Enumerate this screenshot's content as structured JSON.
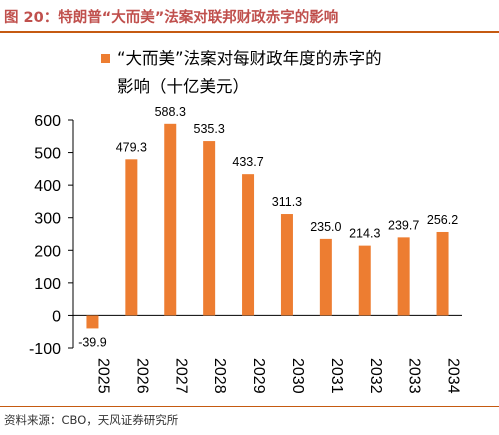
{
  "figure": {
    "title": "图 20：特朗普“大而美”法案对联邦财政赤字的影响",
    "source": "资料来源：CBO，天风证券研究所"
  },
  "chart_data": {
    "type": "bar",
    "categories": [
      "2025",
      "2026",
      "2027",
      "2028",
      "2029",
      "2030",
      "2031",
      "2032",
      "2033",
      "2034"
    ],
    "series": [
      {
        "name": "“大而美”法案对每财政年度的赤字的影响（十亿美元）",
        "values": [
          -39.9,
          479.3,
          588.3,
          535.3,
          433.7,
          311.3,
          235.0,
          214.3,
          239.7,
          256.2
        ],
        "value_labels": [
          "-39.9",
          "479.3",
          "588.3",
          "535.3",
          "433.7",
          "311.3",
          "235.0",
          "214.3",
          "239.7",
          "256.2"
        ],
        "color": "#ed7d31"
      }
    ],
    "legend_lines": [
      "“大而美”法案对每财政年度的赤字的",
      "影响（十亿美元）"
    ],
    "yticks": [
      -100,
      0,
      100,
      200,
      300,
      400,
      500,
      600
    ],
    "ylim": [
      -100,
      600
    ],
    "legend_position": "top-center",
    "grid": false
  }
}
